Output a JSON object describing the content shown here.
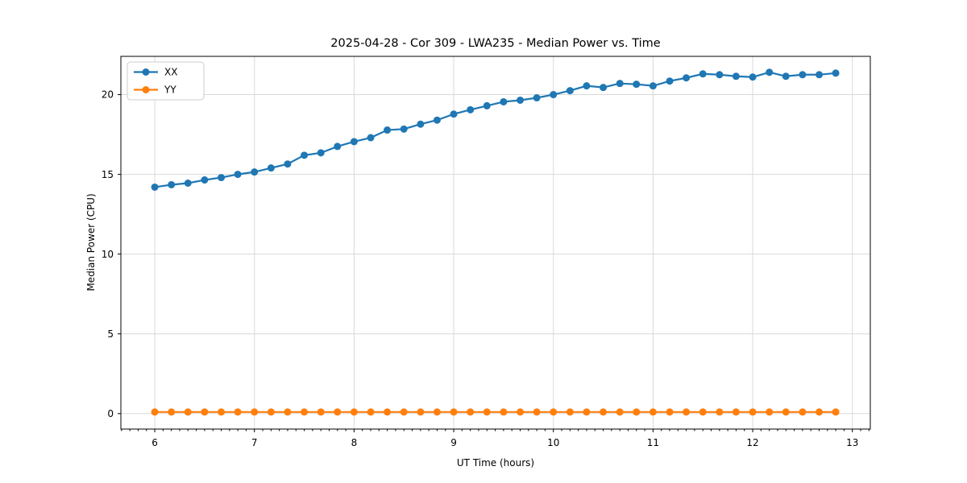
{
  "chart_data": {
    "type": "line",
    "title": "2025-04-28 - Cor 309 - LWA235 - Median Power vs. Time",
    "xlabel": "UT Time (hours)",
    "ylabel": "Median Power (CPU)",
    "xlim": [
      5.66,
      13.18
    ],
    "ylim": [
      -0.97,
      22.4
    ],
    "x_ticks": [
      6,
      7,
      8,
      9,
      10,
      11,
      12,
      13
    ],
    "y_ticks": [
      0,
      5,
      10,
      15,
      20
    ],
    "x_minor_tick_step_hours": 0.0833,
    "grid": true,
    "legend_position": "upper-left",
    "background_color": "#ffffff",
    "x": [
      6.0,
      6.167,
      6.333,
      6.5,
      6.667,
      6.833,
      7.0,
      7.167,
      7.333,
      7.5,
      7.667,
      7.833,
      8.0,
      8.167,
      8.333,
      8.5,
      8.667,
      8.833,
      9.0,
      9.167,
      9.333,
      9.5,
      9.667,
      9.833,
      10.0,
      10.167,
      10.333,
      10.5,
      10.667,
      10.833,
      11.0,
      11.167,
      11.333,
      11.5,
      11.667,
      11.833,
      12.0,
      12.167,
      12.333,
      12.5,
      12.667,
      12.833
    ],
    "series": [
      {
        "name": "XX",
        "color": "#1f77b4",
        "values": [
          14.2,
          14.35,
          14.45,
          14.65,
          14.8,
          15.0,
          15.15,
          15.4,
          15.65,
          16.2,
          16.35,
          16.75,
          17.05,
          17.3,
          17.78,
          17.84,
          18.15,
          18.4,
          18.78,
          19.05,
          19.3,
          19.55,
          19.65,
          19.8,
          20.0,
          20.25,
          20.55,
          20.45,
          20.7,
          20.65,
          20.55,
          20.85,
          21.05,
          21.3,
          21.25,
          21.15,
          21.1,
          21.4,
          21.15,
          21.25,
          21.25,
          21.35
        ]
      },
      {
        "name": "YY",
        "color": "#ff7f0e",
        "values": [
          0.1,
          0.1,
          0.1,
          0.1,
          0.1,
          0.1,
          0.1,
          0.1,
          0.1,
          0.1,
          0.1,
          0.1,
          0.1,
          0.1,
          0.1,
          0.1,
          0.1,
          0.1,
          0.1,
          0.1,
          0.1,
          0.1,
          0.1,
          0.1,
          0.1,
          0.1,
          0.1,
          0.1,
          0.1,
          0.1,
          0.1,
          0.1,
          0.1,
          0.1,
          0.1,
          0.1,
          0.1,
          0.1,
          0.1,
          0.1,
          0.1,
          0.1
        ]
      }
    ]
  }
}
